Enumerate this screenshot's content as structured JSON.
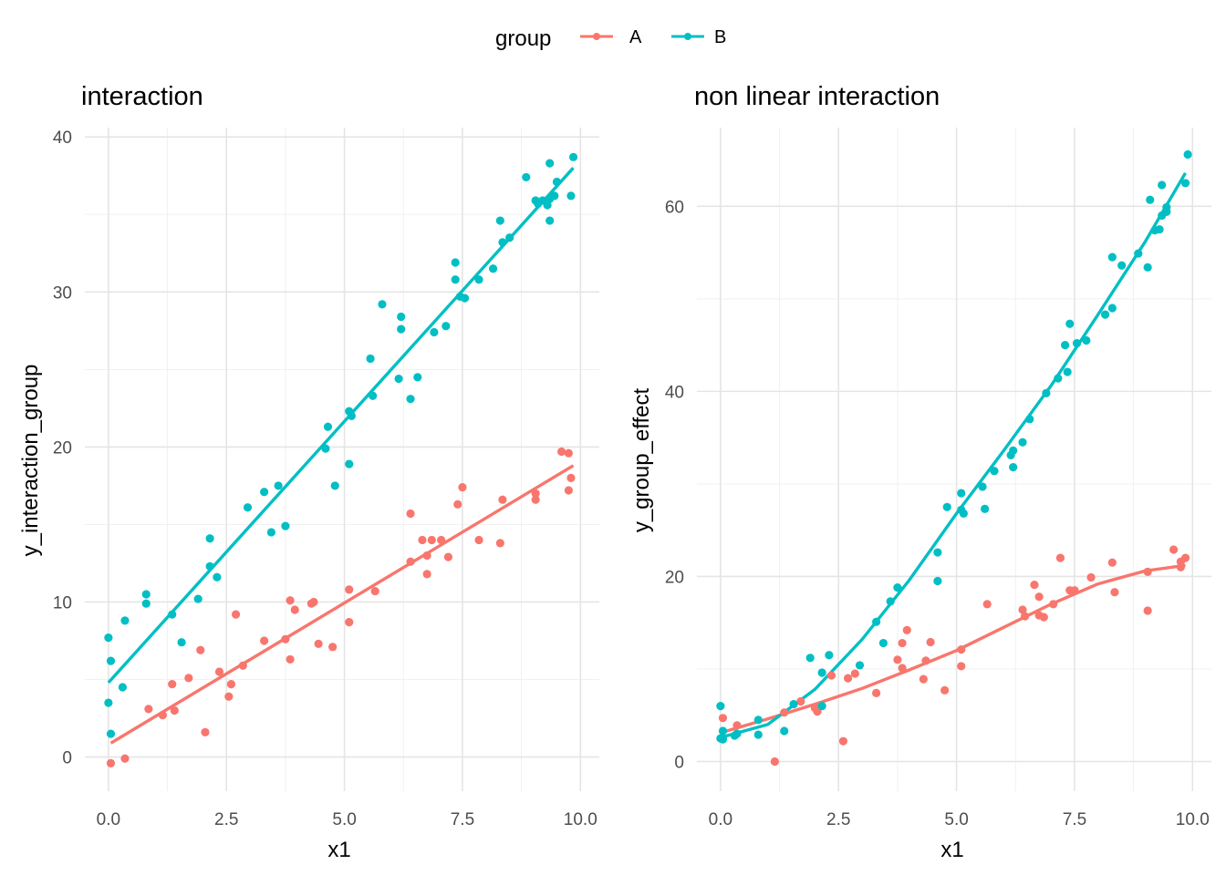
{
  "legend": {
    "title": "group",
    "placement": "top",
    "entries": [
      {
        "label": "A",
        "color": "#F8766D"
      },
      {
        "label": "B",
        "color": "#00BFC4"
      }
    ]
  },
  "chart_data": [
    {
      "type": "scatter",
      "title": "interaction",
      "xlabel": "x1",
      "ylabel": "y_interaction_group",
      "xlim": [
        -0.5,
        10.4
      ],
      "ylim": [
        -2.2,
        40.6
      ],
      "xticks": [
        0,
        2.5,
        5,
        7.5,
        10
      ],
      "xtick_labels": [
        "0.0",
        "2.5",
        "5.0",
        "7.5",
        "10.0"
      ],
      "yticks": [
        0,
        10,
        20,
        30,
        40
      ],
      "ytick_labels": [
        "0",
        "10",
        "20",
        "30",
        "40"
      ],
      "grid": true,
      "series": [
        {
          "name": "A",
          "color": "#F8766D",
          "points": [
            [
              0.05,
              -0.4
            ],
            [
              0.35,
              -0.1
            ],
            [
              0.85,
              3.1
            ],
            [
              1.15,
              2.7
            ],
            [
              1.35,
              4.7
            ],
            [
              1.4,
              3.0
            ],
            [
              1.7,
              5.1
            ],
            [
              1.95,
              6.9
            ],
            [
              2.05,
              1.6
            ],
            [
              2.35,
              5.5
            ],
            [
              2.55,
              3.9
            ],
            [
              2.6,
              4.7
            ],
            [
              2.7,
              9.2
            ],
            [
              2.85,
              5.9
            ],
            [
              3.3,
              7.5
            ],
            [
              3.75,
              7.6
            ],
            [
              3.85,
              6.3
            ],
            [
              3.85,
              10.1
            ],
            [
              3.95,
              9.5
            ],
            [
              4.3,
              9.9
            ],
            [
              4.35,
              10.0
            ],
            [
              4.45,
              7.3
            ],
            [
              4.75,
              7.1
            ],
            [
              5.1,
              10.8
            ],
            [
              5.1,
              8.7
            ],
            [
              5.65,
              10.7
            ],
            [
              6.4,
              15.7
            ],
            [
              6.4,
              12.6
            ],
            [
              6.65,
              14.0
            ],
            [
              6.75,
              11.8
            ],
            [
              6.75,
              13.0
            ],
            [
              6.85,
              14.0
            ],
            [
              7.05,
              14.0
            ],
            [
              7.2,
              12.9
            ],
            [
              7.4,
              16.3
            ],
            [
              7.5,
              17.4
            ],
            [
              7.85,
              14.0
            ],
            [
              8.3,
              13.8
            ],
            [
              8.35,
              16.6
            ],
            [
              9.05,
              17.0
            ],
            [
              9.05,
              16.6
            ],
            [
              9.6,
              19.7
            ],
            [
              9.75,
              19.6
            ],
            [
              9.75,
              17.2
            ],
            [
              9.8,
              18.0
            ]
          ]
        },
        {
          "name": "B",
          "color": "#00BFC4",
          "points": [
            [
              0.0,
              7.7
            ],
            [
              0.0,
              3.5
            ],
            [
              0.05,
              6.2
            ],
            [
              0.05,
              1.5
            ],
            [
              0.3,
              4.5
            ],
            [
              0.35,
              8.8
            ],
            [
              0.8,
              10.5
            ],
            [
              0.8,
              9.9
            ],
            [
              1.35,
              9.2
            ],
            [
              1.55,
              7.4
            ],
            [
              1.9,
              10.2
            ],
            [
              2.15,
              12.3
            ],
            [
              2.15,
              14.1
            ],
            [
              2.3,
              11.6
            ],
            [
              2.95,
              16.1
            ],
            [
              3.3,
              17.1
            ],
            [
              3.45,
              14.5
            ],
            [
              3.6,
              17.5
            ],
            [
              3.75,
              14.9
            ],
            [
              4.6,
              19.9
            ],
            [
              4.65,
              21.3
            ],
            [
              4.8,
              17.5
            ],
            [
              5.1,
              22.3
            ],
            [
              5.1,
              18.9
            ],
            [
              5.15,
              22.0
            ],
            [
              5.55,
              25.7
            ],
            [
              5.6,
              23.3
            ],
            [
              5.8,
              29.2
            ],
            [
              6.15,
              24.4
            ],
            [
              6.2,
              28.4
            ],
            [
              6.2,
              27.6
            ],
            [
              6.4,
              23.1
            ],
            [
              6.55,
              24.5
            ],
            [
              6.9,
              27.4
            ],
            [
              7.15,
              27.8
            ],
            [
              7.35,
              31.9
            ],
            [
              7.35,
              30.8
            ],
            [
              7.45,
              29.7
            ],
            [
              7.55,
              29.6
            ],
            [
              7.85,
              30.8
            ],
            [
              8.15,
              31.5
            ],
            [
              8.3,
              34.6
            ],
            [
              8.35,
              33.2
            ],
            [
              8.5,
              33.5
            ],
            [
              8.85,
              37.4
            ],
            [
              9.05,
              35.9
            ],
            [
              9.1,
              35.7
            ],
            [
              9.2,
              35.9
            ],
            [
              9.3,
              35.6
            ],
            [
              9.35,
              36.0
            ],
            [
              9.35,
              34.6
            ],
            [
              9.35,
              38.3
            ],
            [
              9.45,
              36.2
            ],
            [
              9.5,
              37.1
            ],
            [
              9.8,
              36.2
            ],
            [
              9.85,
              38.7
            ]
          ]
        }
      ],
      "fits": [
        {
          "name": "A",
          "color": "#F8766D",
          "x": [
            0.05,
            9.85
          ],
          "y": [
            0.9,
            18.8
          ]
        },
        {
          "name": "B",
          "color": "#00BFC4",
          "x": [
            0.0,
            9.85
          ],
          "y": [
            4.8,
            38.0
          ]
        }
      ]
    },
    {
      "type": "scatter",
      "title": "non linear interaction",
      "xlabel": "x1",
      "ylabel": "y_group_effect",
      "xlim": [
        -0.5,
        10.4
      ],
      "ylim": [
        -3.2,
        68.5
      ],
      "xticks": [
        0,
        2.5,
        5,
        7.5,
        10
      ],
      "xtick_labels": [
        "0.0",
        "2.5",
        "5.0",
        "7.5",
        "10.0"
      ],
      "yticks": [
        0,
        20,
        40,
        60
      ],
      "ytick_labels": [
        "0",
        "20",
        "40",
        "60"
      ],
      "grid": true,
      "series": [
        {
          "name": "A",
          "color": "#F8766D",
          "points": [
            [
              0.05,
              4.7
            ],
            [
              0.35,
              3.9
            ],
            [
              1.15,
              0.0
            ],
            [
              1.35,
              5.3
            ],
            [
              1.7,
              6.5
            ],
            [
              2.0,
              5.8
            ],
            [
              2.05,
              5.4
            ],
            [
              2.35,
              9.3
            ],
            [
              2.6,
              2.2
            ],
            [
              2.7,
              9.0
            ],
            [
              2.85,
              9.5
            ],
            [
              3.3,
              7.4
            ],
            [
              3.75,
              11.0
            ],
            [
              3.85,
              10.1
            ],
            [
              3.85,
              12.8
            ],
            [
              3.95,
              14.2
            ],
            [
              4.3,
              8.9
            ],
            [
              4.35,
              10.9
            ],
            [
              4.45,
              12.9
            ],
            [
              4.75,
              7.7
            ],
            [
              5.1,
              12.1
            ],
            [
              5.1,
              10.3
            ],
            [
              5.65,
              17.0
            ],
            [
              6.4,
              16.4
            ],
            [
              6.45,
              15.7
            ],
            [
              6.65,
              19.1
            ],
            [
              6.75,
              15.8
            ],
            [
              6.75,
              17.8
            ],
            [
              6.85,
              15.6
            ],
            [
              7.05,
              17.0
            ],
            [
              7.2,
              22.0
            ],
            [
              7.4,
              18.5
            ],
            [
              7.5,
              18.5
            ],
            [
              7.85,
              19.9
            ],
            [
              8.3,
              21.5
            ],
            [
              8.35,
              18.3
            ],
            [
              9.05,
              20.5
            ],
            [
              9.05,
              16.3
            ],
            [
              9.6,
              22.9
            ],
            [
              9.75,
              21.0
            ],
            [
              9.75,
              21.6
            ],
            [
              9.85,
              22.0
            ]
          ]
        },
        {
          "name": "B",
          "color": "#00BFC4",
          "points": [
            [
              0.0,
              6.0
            ],
            [
              0.0,
              2.5
            ],
            [
              0.05,
              3.3
            ],
            [
              0.05,
              2.4
            ],
            [
              0.3,
              2.8
            ],
            [
              0.35,
              3.0
            ],
            [
              0.8,
              2.9
            ],
            [
              0.8,
              4.5
            ],
            [
              1.35,
              3.3
            ],
            [
              1.55,
              6.2
            ],
            [
              1.9,
              11.2
            ],
            [
              2.15,
              9.6
            ],
            [
              2.15,
              6.0
            ],
            [
              2.3,
              11.5
            ],
            [
              2.95,
              10.4
            ],
            [
              3.3,
              15.1
            ],
            [
              3.45,
              12.8
            ],
            [
              3.6,
              17.3
            ],
            [
              3.75,
              18.8
            ],
            [
              4.6,
              22.6
            ],
            [
              4.6,
              19.5
            ],
            [
              4.8,
              27.5
            ],
            [
              5.1,
              29.0
            ],
            [
              5.1,
              27.2
            ],
            [
              5.15,
              26.8
            ],
            [
              5.55,
              29.7
            ],
            [
              5.6,
              27.3
            ],
            [
              5.8,
              31.4
            ],
            [
              6.15,
              33.1
            ],
            [
              6.2,
              31.8
            ],
            [
              6.2,
              33.6
            ],
            [
              6.4,
              34.5
            ],
            [
              6.55,
              37.0
            ],
            [
              6.9,
              39.8
            ],
            [
              7.15,
              41.4
            ],
            [
              7.3,
              45.0
            ],
            [
              7.35,
              42.1
            ],
            [
              7.4,
              47.3
            ],
            [
              7.55,
              45.2
            ],
            [
              7.75,
              45.5
            ],
            [
              8.15,
              48.3
            ],
            [
              8.3,
              49.0
            ],
            [
              8.3,
              54.5
            ],
            [
              8.5,
              53.6
            ],
            [
              8.85,
              54.9
            ],
            [
              9.05,
              53.4
            ],
            [
              9.1,
              60.7
            ],
            [
              9.2,
              57.4
            ],
            [
              9.3,
              57.5
            ],
            [
              9.35,
              62.3
            ],
            [
              9.35,
              59.0
            ],
            [
              9.45,
              59.9
            ],
            [
              9.45,
              59.4
            ],
            [
              9.85,
              62.5
            ],
            [
              9.9,
              65.6
            ]
          ]
        }
      ],
      "fits": [
        {
          "name": "A",
          "color": "#F8766D",
          "x": [
            0.0,
            1.0,
            2.0,
            3.0,
            4.0,
            5.0,
            6.0,
            7.0,
            8.0,
            9.0,
            9.85
          ],
          "y": [
            3.1,
            4.6,
            6.2,
            7.9,
            9.9,
            12.0,
            14.5,
            17.0,
            19.2,
            20.6,
            21.2
          ]
        },
        {
          "name": "B",
          "color": "#00BFC4",
          "x": [
            0.0,
            1.0,
            2.0,
            3.0,
            4.0,
            5.0,
            6.0,
            7.0,
            8.0,
            9.0,
            9.85
          ],
          "y": [
            2.6,
            4.0,
            7.8,
            13.2,
            19.6,
            26.8,
            33.6,
            40.6,
            48.3,
            56.2,
            63.6
          ]
        }
      ]
    }
  ]
}
